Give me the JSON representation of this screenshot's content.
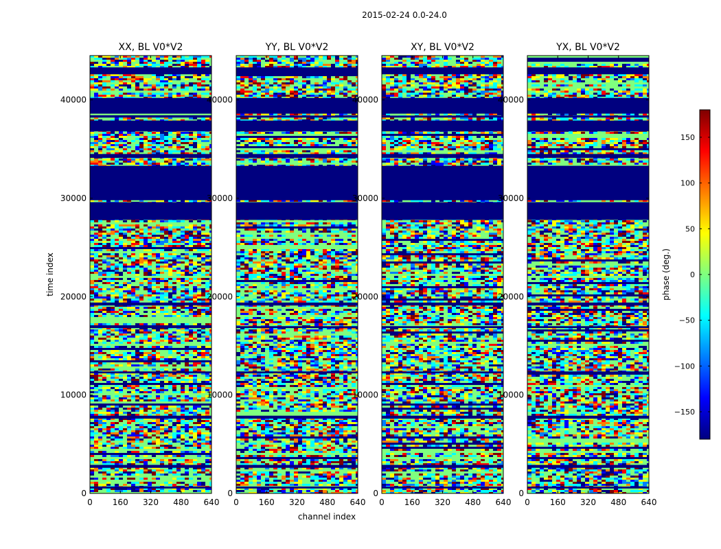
{
  "figure": {
    "suptitle": "2015-02-24 0.0-24.0"
  },
  "chart_data": {
    "type": "heatmap",
    "suptitle": "2015-02-24 0.0-24.0",
    "xlabel": "channel index",
    "ylabel": "time index",
    "xlim": [
      0,
      640
    ],
    "ylim": [
      0,
      44500
    ],
    "xticks": [
      "0",
      "160",
      "320",
      "480",
      "640"
    ],
    "yticks": [
      "0",
      "10000",
      "20000",
      "30000",
      "40000"
    ],
    "panels": [
      {
        "title": "XX, BL V0*V2"
      },
      {
        "title": "YY, BL V0*V2"
      },
      {
        "title": "XY, BL V0*V2"
      },
      {
        "title": "YX, BL V0*V2"
      }
    ],
    "flagged_time_ranges": [
      [
        27800,
        29600
      ],
      [
        29800,
        33300
      ],
      [
        34100,
        34500
      ],
      [
        36800,
        37900
      ],
      [
        38200,
        38400
      ],
      [
        38600,
        40200
      ],
      [
        42600,
        43300
      ],
      [
        19100,
        19400
      ],
      [
        2600,
        2900
      ],
      [
        500,
        700
      ],
      [
        7600,
        7900
      ],
      [
        12200,
        12400
      ],
      [
        16800,
        17000
      ]
    ],
    "colorbar": {
      "label": "phase (deg.)",
      "range": [
        -180,
        180
      ],
      "ticks": [
        "150",
        "100",
        "50",
        "0",
        "−50",
        "−100",
        "−150"
      ],
      "colormap": [
        "#00007f",
        "#0000ff",
        "#007fff",
        "#00ffff",
        "#7fff7f",
        "#ffff00",
        "#ff7f00",
        "#ff0000",
        "#7f0000"
      ]
    }
  }
}
